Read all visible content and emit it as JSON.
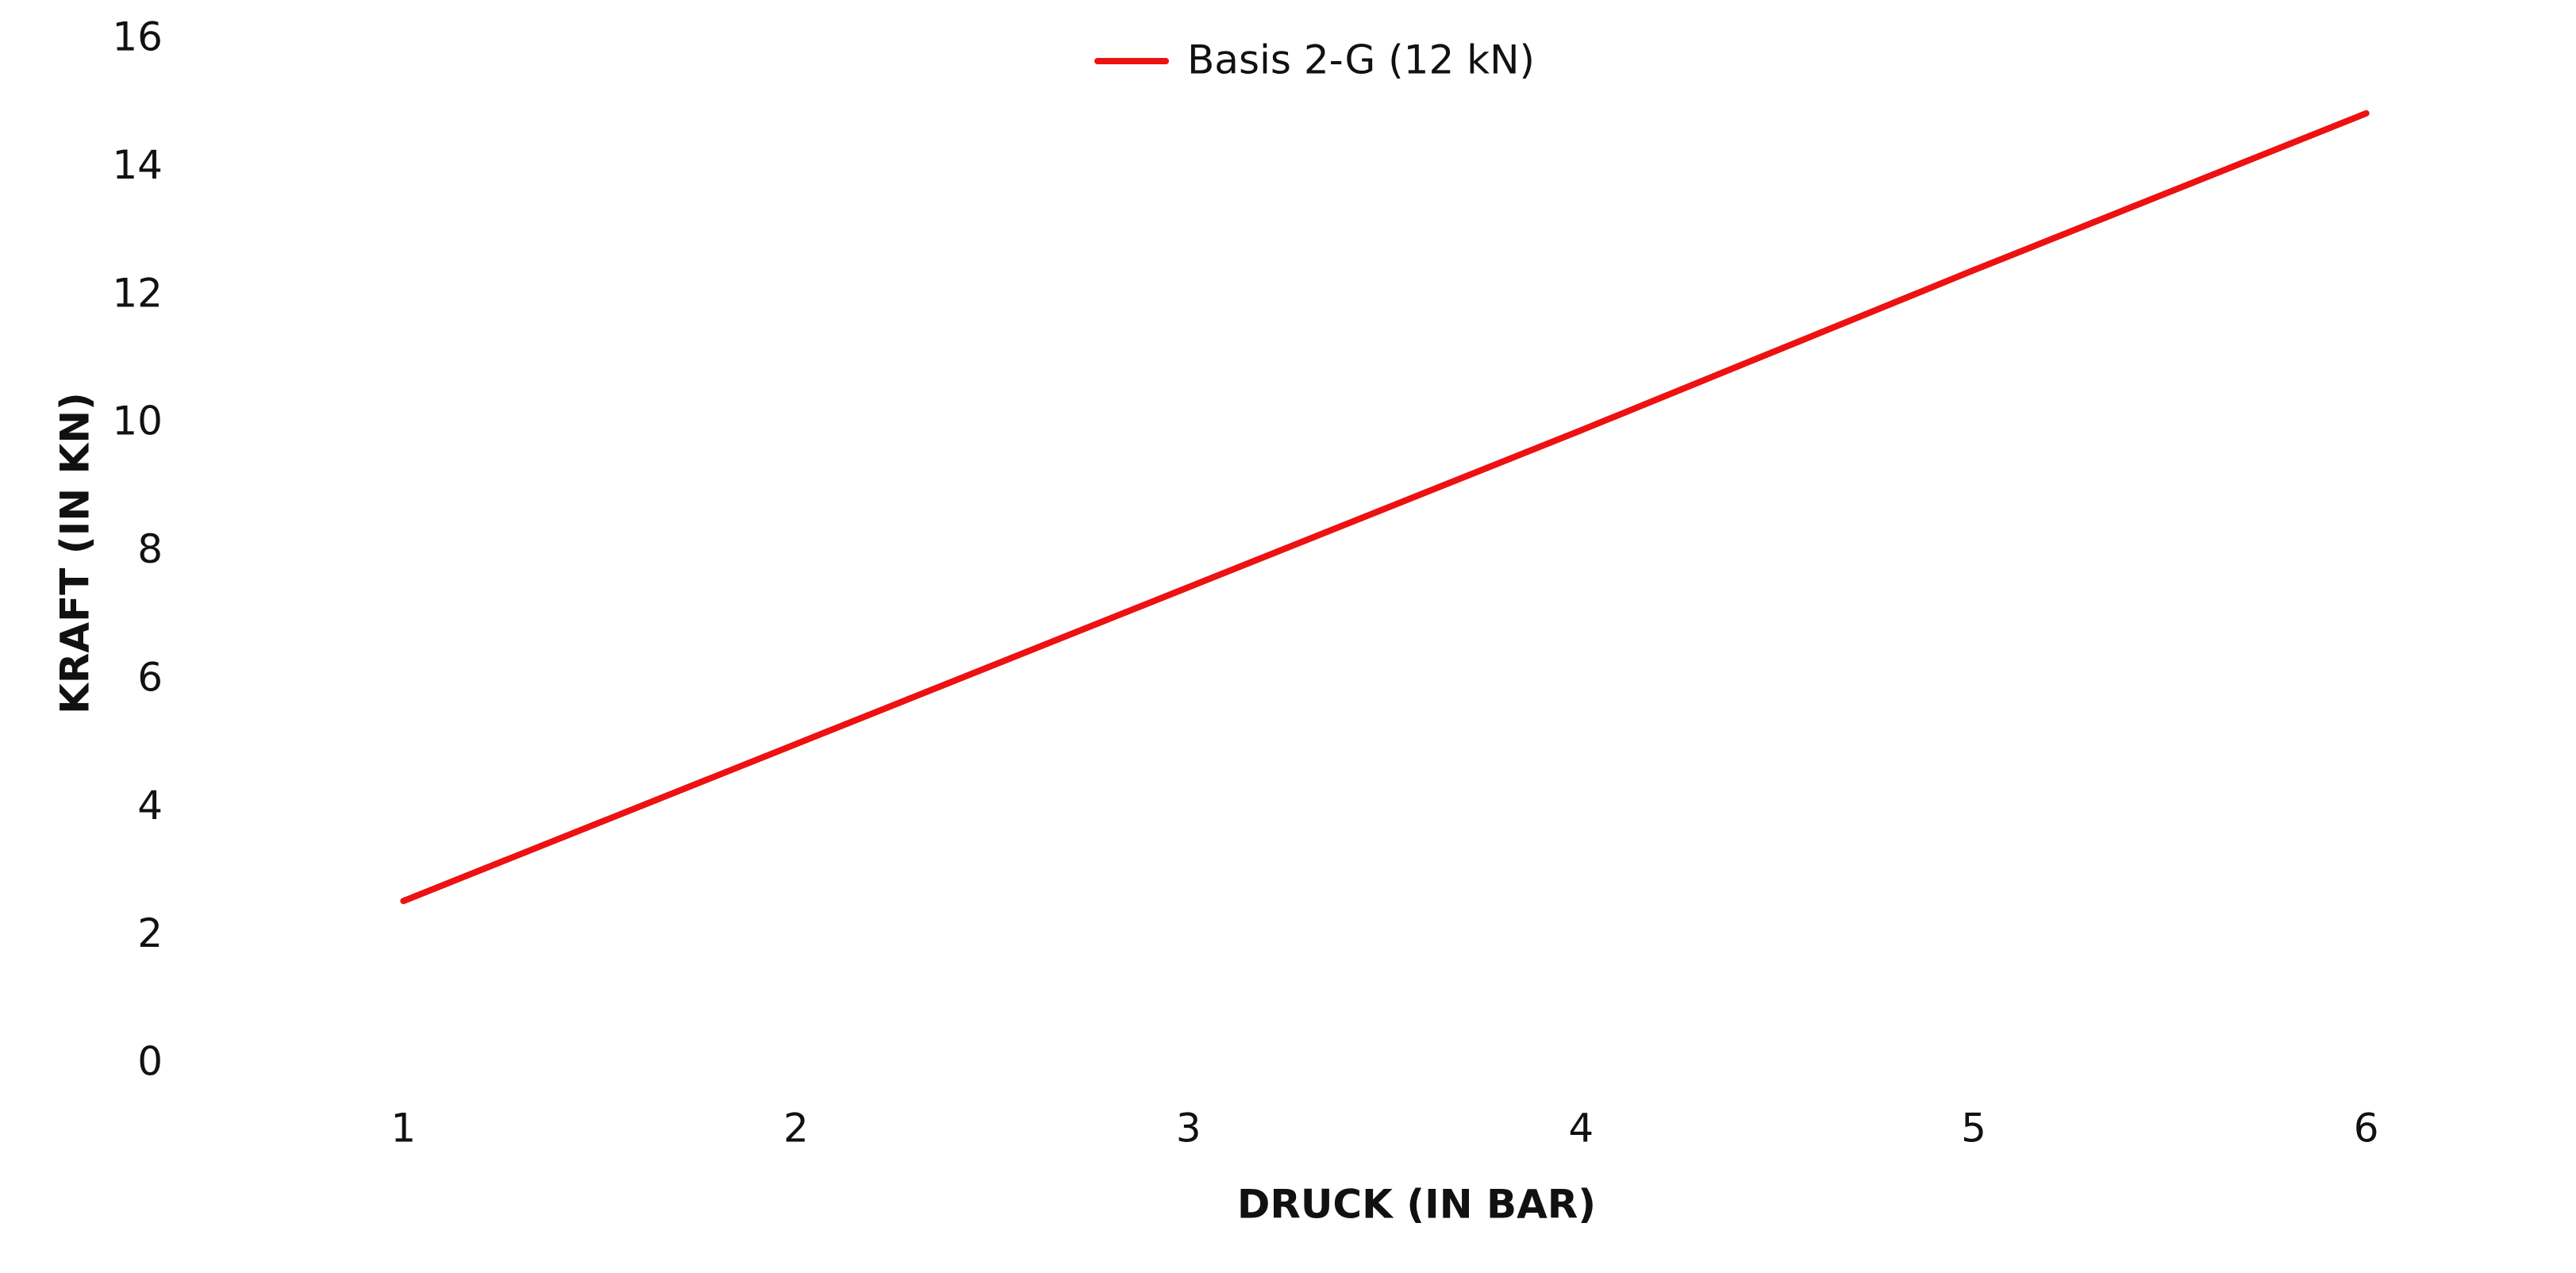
{
  "chart_data": {
    "type": "line",
    "x_label": "DRUCK (IN BAR)",
    "y_label": "KRAFT (IN KN)",
    "categories": [
      "1",
      "2",
      "3",
      "4",
      "5",
      "6"
    ],
    "series": [
      {
        "name": "Basis 2-G (12 kN)",
        "color": "#ee1111",
        "values": [
          2.55,
          5.0,
          7.45,
          9.9,
          12.4,
          14.85
        ]
      }
    ],
    "ylim": [
      0,
      16
    ],
    "yticks": [
      0,
      2,
      4,
      6,
      8,
      10,
      12,
      14,
      16
    ],
    "grid": false,
    "legend": "top"
  }
}
